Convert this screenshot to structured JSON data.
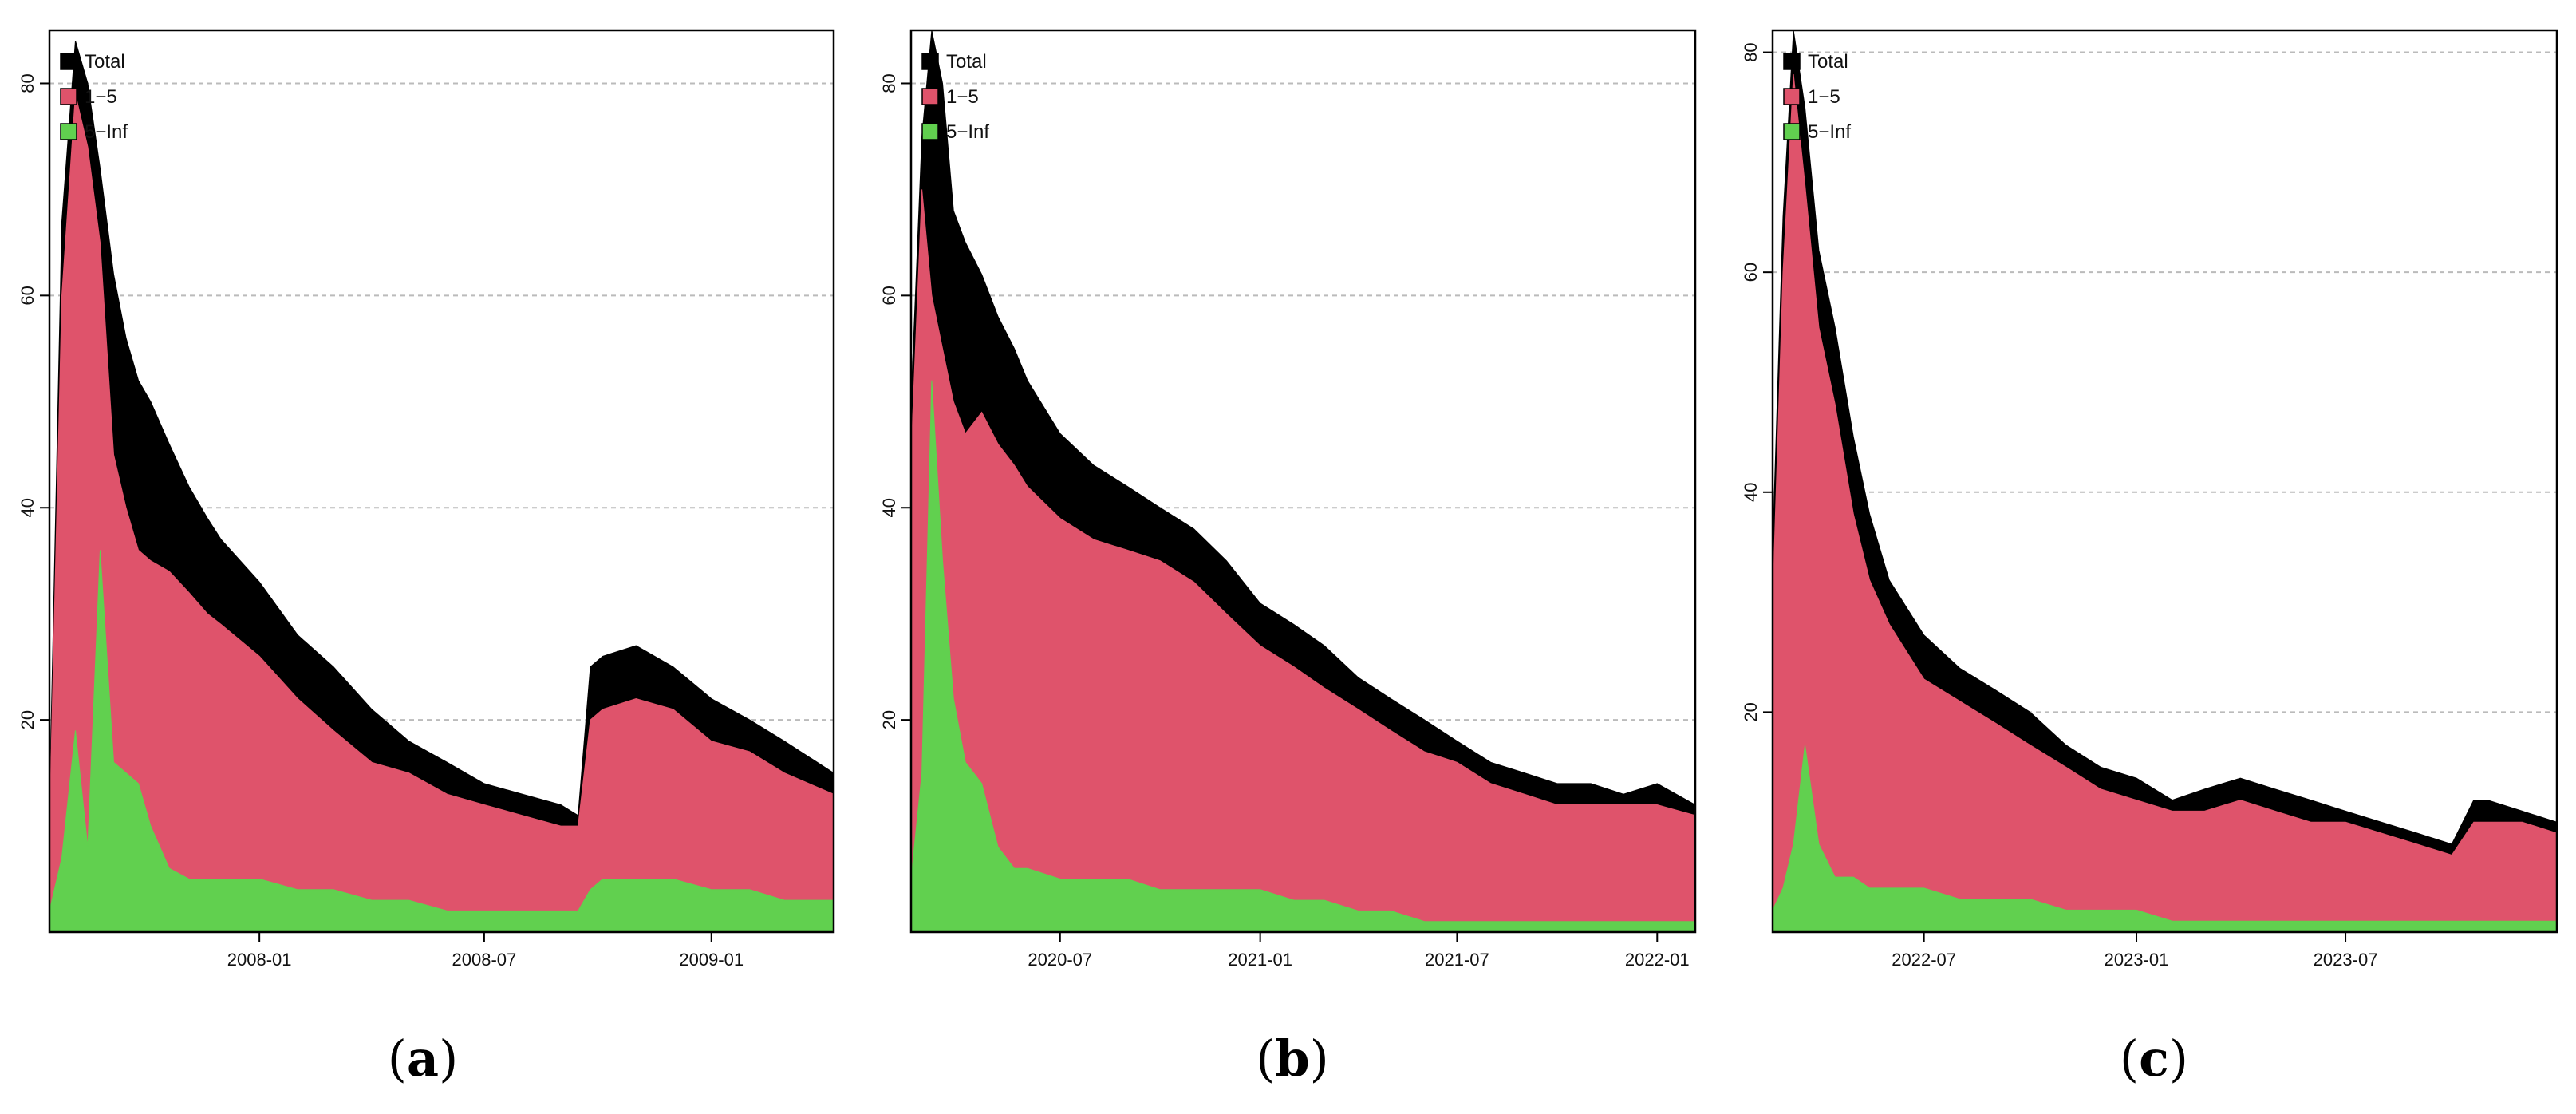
{
  "colors": {
    "total": "#000000",
    "mid": "#DF536B",
    "high": "#61D04F",
    "grid": "#BBBBBB"
  },
  "legend": [
    {
      "key": "total",
      "label": "Total"
    },
    {
      "key": "mid",
      "label": "1−5"
    },
    {
      "key": "high",
      "label": "5−Inf"
    }
  ],
  "chart_data": [
    {
      "type": "area",
      "caption_letter": "a",
      "xlabel": "",
      "ylabel": "",
      "ylim": [
        0,
        85
      ],
      "yticks": [
        20,
        40,
        60,
        80
      ],
      "xlim": [
        "2007-07-15",
        "2009-04-10"
      ],
      "xticks": [
        "2008-01",
        "2008-07",
        "2009-01"
      ],
      "grid": "horizontal dashed",
      "legend_position": "top-left",
      "series": [
        {
          "name": "Total",
          "x": [
            "2007-07-15",
            "2007-07-25",
            "2007-08-05",
            "2007-08-15",
            "2007-08-25",
            "2007-09-05",
            "2007-09-15",
            "2007-09-25",
            "2007-10-05",
            "2007-10-20",
            "2007-11-05",
            "2007-11-20",
            "2007-12-01",
            "2008-01-01",
            "2008-02-01",
            "2008-03-01",
            "2008-04-01",
            "2008-05-01",
            "2008-06-01",
            "2008-07-01",
            "2008-08-01",
            "2008-09-01",
            "2008-09-15",
            "2008-09-25",
            "2008-10-05",
            "2008-11-01",
            "2008-12-01",
            "2009-01-01",
            "2009-02-01",
            "2009-03-01",
            "2009-04-10"
          ],
          "values": [
            12,
            67,
            84,
            80,
            72,
            62,
            56,
            52,
            50,
            46,
            42,
            39,
            37,
            33,
            28,
            25,
            21,
            18,
            16,
            14,
            13,
            12,
            11,
            25,
            26,
            27,
            25,
            22,
            20,
            18,
            15
          ]
        },
        {
          "name": "1−5",
          "x": [
            "2007-07-15",
            "2007-07-25",
            "2007-08-05",
            "2007-08-15",
            "2007-08-25",
            "2007-09-05",
            "2007-09-15",
            "2007-09-25",
            "2007-10-05",
            "2007-10-20",
            "2007-11-05",
            "2007-11-20",
            "2007-12-01",
            "2008-01-01",
            "2008-02-01",
            "2008-03-01",
            "2008-04-01",
            "2008-05-01",
            "2008-06-01",
            "2008-07-01",
            "2008-08-01",
            "2008-09-01",
            "2008-09-15",
            "2008-09-25",
            "2008-10-05",
            "2008-11-01",
            "2008-12-01",
            "2009-01-01",
            "2009-02-01",
            "2009-03-01",
            "2009-04-10"
          ],
          "values": [
            10,
            60,
            79,
            74,
            65,
            45,
            40,
            36,
            35,
            34,
            32,
            30,
            29,
            26,
            22,
            19,
            16,
            15,
            13,
            12,
            11,
            10,
            10,
            20,
            21,
            22,
            21,
            18,
            17,
            15,
            13
          ]
        },
        {
          "name": "5−Inf",
          "x": [
            "2007-07-15",
            "2007-07-25",
            "2007-08-05",
            "2007-08-15",
            "2007-08-25",
            "2007-09-05",
            "2007-09-15",
            "2007-09-25",
            "2007-10-05",
            "2007-10-20",
            "2007-11-05",
            "2007-11-20",
            "2007-12-01",
            "2008-01-01",
            "2008-02-01",
            "2008-03-01",
            "2008-04-01",
            "2008-05-01",
            "2008-06-01",
            "2008-07-01",
            "2008-08-01",
            "2008-09-01",
            "2008-09-15",
            "2008-09-25",
            "2008-10-05",
            "2008-11-01",
            "2008-12-01",
            "2009-01-01",
            "2009-02-01",
            "2009-03-01",
            "2009-04-10"
          ],
          "values": [
            2,
            7,
            19,
            8,
            36,
            16,
            15,
            14,
            10,
            6,
            5,
            5,
            5,
            5,
            4,
            4,
            3,
            3,
            2,
            2,
            2,
            2,
            2,
            4,
            5,
            5,
            5,
            4,
            4,
            3,
            3
          ]
        }
      ]
    },
    {
      "type": "area",
      "caption_letter": "b",
      "xlabel": "",
      "ylabel": "",
      "ylim": [
        0,
        85
      ],
      "yticks": [
        20,
        40,
        60,
        80
      ],
      "xlim": [
        "2020-02-15",
        "2022-02-05"
      ],
      "xticks": [
        "2020-07",
        "2021-01",
        "2021-07",
        "2022-01"
      ],
      "grid": "horizontal dashed",
      "legend_position": "top-left",
      "series": [
        {
          "name": "Total",
          "x": [
            "2020-02-15",
            "2020-02-25",
            "2020-03-05",
            "2020-03-15",
            "2020-03-25",
            "2020-04-05",
            "2020-04-20",
            "2020-05-05",
            "2020-05-20",
            "2020-06-01",
            "2020-07-01",
            "2020-08-01",
            "2020-09-01",
            "2020-10-01",
            "2020-11-01",
            "2020-12-01",
            "2021-01-01",
            "2021-02-01",
            "2021-03-01",
            "2021-04-01",
            "2021-05-01",
            "2021-06-01",
            "2021-07-01",
            "2021-08-01",
            "2021-09-01",
            "2021-10-01",
            "2021-11-01",
            "2021-12-01",
            "2022-01-01",
            "2022-02-05"
          ],
          "values": [
            50,
            75,
            85,
            80,
            68,
            65,
            62,
            58,
            55,
            52,
            47,
            44,
            42,
            40,
            38,
            35,
            31,
            29,
            27,
            24,
            22,
            20,
            18,
            16,
            15,
            14,
            14,
            13,
            14,
            12
          ]
        },
        {
          "name": "1−5",
          "x": [
            "2020-02-15",
            "2020-02-25",
            "2020-03-05",
            "2020-03-15",
            "2020-03-25",
            "2020-04-05",
            "2020-04-20",
            "2020-05-05",
            "2020-05-20",
            "2020-06-01",
            "2020-07-01",
            "2020-08-01",
            "2020-09-01",
            "2020-10-01",
            "2020-11-01",
            "2020-12-01",
            "2021-01-01",
            "2021-02-01",
            "2021-03-01",
            "2021-04-01",
            "2021-05-01",
            "2021-06-01",
            "2021-07-01",
            "2021-08-01",
            "2021-09-01",
            "2021-10-01",
            "2021-11-01",
            "2021-12-01",
            "2022-01-01",
            "2022-02-05"
          ],
          "values": [
            45,
            70,
            60,
            55,
            50,
            47,
            49,
            46,
            44,
            42,
            39,
            37,
            36,
            35,
            33,
            30,
            27,
            25,
            23,
            21,
            19,
            17,
            16,
            14,
            13,
            12,
            12,
            12,
            12,
            11
          ]
        },
        {
          "name": "5−Inf",
          "x": [
            "2020-02-15",
            "2020-02-25",
            "2020-03-05",
            "2020-03-15",
            "2020-03-25",
            "2020-04-05",
            "2020-04-20",
            "2020-05-05",
            "2020-05-20",
            "2020-06-01",
            "2020-07-01",
            "2020-08-01",
            "2020-09-01",
            "2020-10-01",
            "2020-11-01",
            "2020-12-01",
            "2021-01-01",
            "2021-02-01",
            "2021-03-01",
            "2021-04-01",
            "2021-05-01",
            "2021-06-01",
            "2021-07-01",
            "2021-08-01",
            "2021-09-01",
            "2021-10-01",
            "2021-11-01",
            "2021-12-01",
            "2022-01-01",
            "2022-02-05"
          ],
          "values": [
            5,
            15,
            52,
            35,
            22,
            16,
            14,
            8,
            6,
            6,
            5,
            5,
            5,
            4,
            4,
            4,
            4,
            3,
            3,
            2,
            2,
            1,
            1,
            1,
            1,
            1,
            1,
            1,
            1,
            1
          ]
        }
      ]
    },
    {
      "type": "area",
      "caption_letter": "c",
      "xlabel": "",
      "ylabel": "",
      "ylim": [
        0,
        82
      ],
      "yticks": [
        20,
        40,
        60,
        80
      ],
      "xlim": [
        "2022-02-20",
        "2023-12-31"
      ],
      "xticks": [
        "2022-07",
        "2023-01",
        "2023-07"
      ],
      "grid": "horizontal dashed",
      "legend_position": "top-left",
      "series": [
        {
          "name": "Total",
          "x": [
            "2022-02-20",
            "2022-03-01",
            "2022-03-10",
            "2022-03-20",
            "2022-04-01",
            "2022-04-15",
            "2022-05-01",
            "2022-05-15",
            "2022-06-01",
            "2022-07-01",
            "2022-08-01",
            "2022-09-01",
            "2022-10-01",
            "2022-11-01",
            "2022-12-01",
            "2023-01-01",
            "2023-02-01",
            "2023-03-01",
            "2023-04-01",
            "2023-05-01",
            "2023-06-01",
            "2023-07-01",
            "2023-08-01",
            "2023-09-01",
            "2023-10-01",
            "2023-10-20",
            "2023-11-01",
            "2023-12-01",
            "2023-12-31"
          ],
          "values": [
            35,
            65,
            82,
            75,
            62,
            55,
            45,
            38,
            32,
            27,
            24,
            22,
            20,
            17,
            15,
            14,
            12,
            13,
            14,
            13,
            12,
            11,
            10,
            9,
            8,
            12,
            12,
            11,
            10
          ]
        },
        {
          "name": "1−5",
          "x": [
            "2022-02-20",
            "2022-03-01",
            "2022-03-10",
            "2022-03-20",
            "2022-04-01",
            "2022-04-15",
            "2022-05-01",
            "2022-05-15",
            "2022-06-01",
            "2022-07-01",
            "2022-08-01",
            "2022-09-01",
            "2022-10-01",
            "2022-11-01",
            "2022-12-01",
            "2023-01-01",
            "2023-02-01",
            "2023-03-01",
            "2023-04-01",
            "2023-05-01",
            "2023-06-01",
            "2023-07-01",
            "2023-08-01",
            "2023-09-01",
            "2023-10-01",
            "2023-10-20",
            "2023-11-01",
            "2023-12-01",
            "2023-12-31"
          ],
          "values": [
            30,
            60,
            78,
            68,
            55,
            48,
            38,
            32,
            28,
            23,
            21,
            19,
            17,
            15,
            13,
            12,
            11,
            11,
            12,
            11,
            10,
            10,
            9,
            8,
            7,
            10,
            10,
            10,
            9
          ]
        },
        {
          "name": "5−Inf",
          "x": [
            "2022-02-20",
            "2022-03-01",
            "2022-03-10",
            "2022-03-20",
            "2022-04-01",
            "2022-04-15",
            "2022-05-01",
            "2022-05-15",
            "2022-06-01",
            "2022-07-01",
            "2022-08-01",
            "2022-09-01",
            "2022-10-01",
            "2022-11-01",
            "2022-12-01",
            "2023-01-01",
            "2023-02-01",
            "2023-03-01",
            "2023-04-01",
            "2023-05-01",
            "2023-06-01",
            "2023-07-01",
            "2023-08-01",
            "2023-09-01",
            "2023-10-01",
            "2023-10-20",
            "2023-11-01",
            "2023-12-01",
            "2023-12-31"
          ],
          "values": [
            2,
            4,
            8,
            17,
            8,
            5,
            5,
            4,
            4,
            4,
            3,
            3,
            3,
            2,
            2,
            2,
            1,
            1,
            1,
            1,
            1,
            1,
            1,
            1,
            1,
            1,
            1,
            1,
            1
          ]
        }
      ]
    }
  ]
}
